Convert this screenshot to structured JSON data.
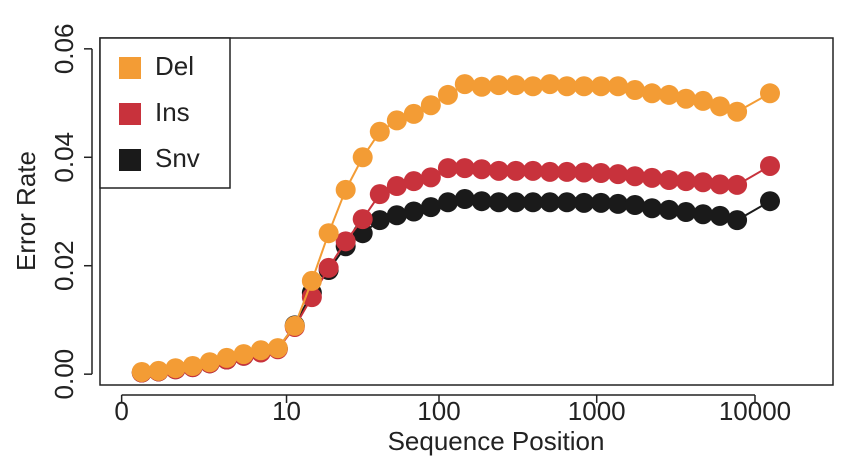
{
  "chart_data": {
    "type": "line",
    "xlabel": "Sequence Position",
    "ylabel": "Error Rate",
    "xscale": "log1p",
    "x": [
      0.34,
      0.71,
      1.19,
      1.81,
      2.6,
      3.61,
      4.9,
      6.57,
      8.69,
      11.4,
      14.9,
      19.3,
      25,
      32.3,
      41.7,
      53.7,
      69,
      88.7,
      114,
      146,
      187,
      240,
      308,
      395,
      506,
      648,
      831,
      1064,
      1364,
      1745,
      2235,
      2864,
      3665,
      4697,
      6011,
      7708,
      12440
    ],
    "series": [
      {
        "name": "Del",
        "color": "#f39c35",
        "values": [
          0.0004,
          0.0006,
          0.0011,
          0.0015,
          0.0022,
          0.003,
          0.0037,
          0.0044,
          0.0048,
          0.0089,
          0.0172,
          0.026,
          0.034,
          0.04,
          0.0447,
          0.0468,
          0.048,
          0.0496,
          0.0515,
          0.0535,
          0.053,
          0.0533,
          0.0533,
          0.0531,
          0.0535,
          0.0531,
          0.0531,
          0.0531,
          0.0531,
          0.0524,
          0.0518,
          0.0515,
          0.0508,
          0.0504,
          0.0494,
          0.0484,
          0.0518
        ]
      },
      {
        "name": "Ins",
        "color": "#c8323c",
        "values": [
          0.0003,
          0.0005,
          0.0009,
          0.0013,
          0.002,
          0.0027,
          0.0034,
          0.004,
          0.0046,
          0.0087,
          0.0142,
          0.0196,
          0.0245,
          0.0286,
          0.0332,
          0.0347,
          0.0356,
          0.0363,
          0.038,
          0.038,
          0.0378,
          0.0375,
          0.0375,
          0.0375,
          0.0373,
          0.0373,
          0.0372,
          0.0371,
          0.0369,
          0.0365,
          0.0362,
          0.0358,
          0.0356,
          0.0354,
          0.035,
          0.0349,
          0.0384
        ]
      },
      {
        "name": "Snv",
        "color": "#1a1a1a",
        "values": [
          0.0003,
          0.0005,
          0.0009,
          0.0013,
          0.002,
          0.0027,
          0.0034,
          0.0041,
          0.0047,
          0.009,
          0.015,
          0.0192,
          0.0236,
          0.026,
          0.0284,
          0.0293,
          0.03,
          0.0308,
          0.0317,
          0.0323,
          0.0319,
          0.0317,
          0.0317,
          0.0317,
          0.0317,
          0.0317,
          0.0316,
          0.0316,
          0.0314,
          0.0312,
          0.0306,
          0.0303,
          0.0299,
          0.0295,
          0.0292,
          0.0284,
          0.0319
        ]
      }
    ],
    "xlim": [
      -0.27,
      31100
    ],
    "xticks": [
      0,
      10,
      100,
      1000,
      10000
    ],
    "ylim": [
      -0.002,
      0.062
    ],
    "yticks": [
      {
        "value": 0,
        "label": "0.00"
      },
      {
        "value": 0.02,
        "label": "0.02"
      },
      {
        "value": 0.04,
        "label": "0.04"
      },
      {
        "value": 0.06,
        "label": "0.06"
      }
    ],
    "legend": "upper left"
  }
}
